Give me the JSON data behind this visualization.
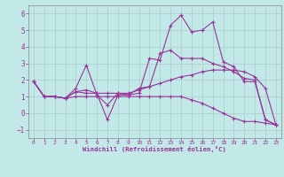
{
  "xlabel": "Windchill (Refroidissement éolien,°C)",
  "xlim": [
    -0.5,
    23.5
  ],
  "ylim": [
    -1.5,
    6.5
  ],
  "xticks": [
    0,
    1,
    2,
    3,
    4,
    5,
    6,
    7,
    8,
    9,
    10,
    11,
    12,
    13,
    14,
    15,
    16,
    17,
    18,
    19,
    20,
    21,
    22,
    23
  ],
  "yticks": [
    -1,
    0,
    1,
    2,
    3,
    4,
    5,
    6
  ],
  "bg_color": "#c2e8e8",
  "grid_color": "#aacccc",
  "line_color": "#993399",
  "series": [
    {
      "x": [
        0,
        1,
        2,
        3,
        4,
        5,
        6,
        7,
        8,
        9,
        10,
        11,
        12,
        13,
        14,
        15,
        16,
        17,
        18,
        19,
        20,
        21,
        22,
        23
      ],
      "y": [
        1.9,
        1.0,
        1.0,
        0.9,
        1.5,
        2.9,
        1.1,
        0.5,
        1.2,
        1.1,
        1.2,
        3.3,
        3.2,
        5.3,
        5.9,
        4.9,
        5.0,
        5.5,
        3.1,
        2.8,
        1.9,
        1.9,
        -0.4,
        -0.7
      ]
    },
    {
      "x": [
        0,
        1,
        2,
        3,
        4,
        5,
        6,
        7,
        8,
        9,
        10,
        11,
        12,
        13,
        14,
        15,
        16,
        17,
        18,
        19,
        20,
        21,
        22,
        23
      ],
      "y": [
        1.9,
        1.0,
        1.0,
        0.9,
        1.3,
        1.4,
        1.2,
        -0.4,
        1.1,
        1.1,
        1.5,
        1.6,
        3.6,
        3.8,
        3.3,
        3.3,
        3.3,
        3.0,
        2.8,
        2.5,
        2.1,
        2.0,
        -0.4,
        -0.7
      ]
    },
    {
      "x": [
        0,
        1,
        2,
        3,
        4,
        5,
        6,
        7,
        8,
        9,
        10,
        11,
        12,
        13,
        14,
        15,
        16,
        17,
        18,
        19,
        20,
        21,
        22,
        23
      ],
      "y": [
        1.9,
        1.0,
        1.0,
        0.9,
        1.3,
        1.2,
        1.2,
        1.2,
        1.2,
        1.2,
        1.4,
        1.6,
        1.8,
        2.0,
        2.2,
        2.3,
        2.5,
        2.6,
        2.6,
        2.6,
        2.5,
        2.2,
        1.5,
        -0.7
      ]
    },
    {
      "x": [
        0,
        1,
        2,
        3,
        4,
        5,
        6,
        7,
        8,
        9,
        10,
        11,
        12,
        13,
        14,
        15,
        16,
        17,
        18,
        19,
        20,
        21,
        22,
        23
      ],
      "y": [
        1.9,
        1.0,
        1.0,
        0.9,
        1.0,
        1.0,
        1.0,
        1.0,
        1.0,
        1.0,
        1.0,
        1.0,
        1.0,
        1.0,
        1.0,
        0.8,
        0.6,
        0.3,
        0.0,
        -0.3,
        -0.5,
        -0.5,
        -0.6,
        -0.7
      ]
    }
  ]
}
